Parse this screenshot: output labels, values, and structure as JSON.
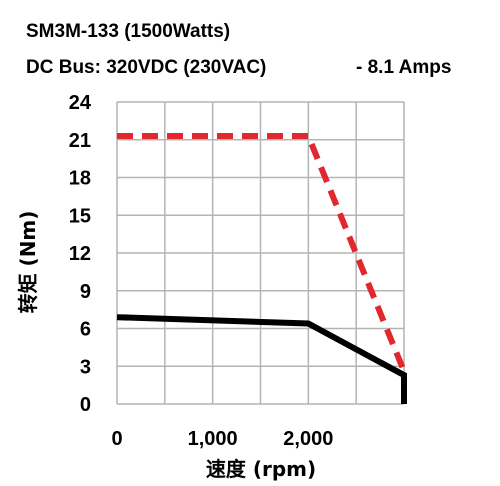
{
  "chart_data": {
    "type": "line",
    "title_line1": "SM3M-133 (1500Watts)",
    "title_line2": "DC Bus: 320VDC (230VAC)",
    "title_line2_right": "-   8.1 Amps",
    "xlabel": "速度 (rpm)",
    "ylabel": "转矩 (Nm)",
    "xlim": [
      0,
      3000
    ],
    "ylim": [
      0,
      24
    ],
    "x_ticks": [
      0,
      1000,
      2000
    ],
    "x_tick_labels": [
      "0",
      "1,000",
      "2,000"
    ],
    "y_ticks": [
      0,
      3,
      6,
      9,
      12,
      15,
      18,
      21,
      24
    ],
    "y_tick_labels": [
      "0",
      "3",
      "6",
      "9",
      "12",
      "15",
      "18",
      "21",
      "24"
    ],
    "grid": true,
    "series": [
      {
        "style": "dashed",
        "color": "#e0282e",
        "x": [
          0,
          2000,
          3000
        ],
        "y": [
          21.3,
          21.3,
          2.6
        ]
      },
      {
        "style": "solid",
        "color": "#000000",
        "x": [
          0,
          2000,
          3000,
          3000
        ],
        "y": [
          6.9,
          6.4,
          2.3,
          0
        ]
      }
    ]
  }
}
